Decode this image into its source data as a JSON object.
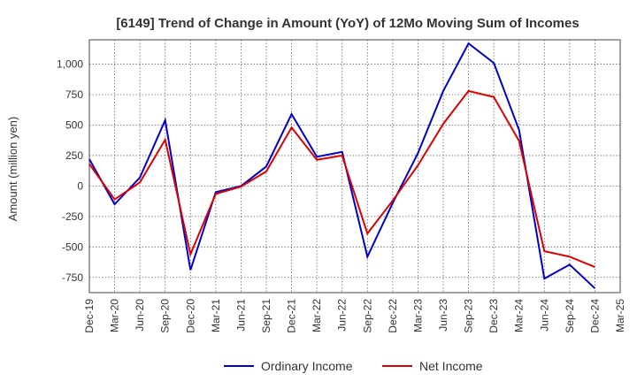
{
  "chart_data": {
    "type": "line",
    "title": "[6149]  Trend of Change in Amount (YoY) of 12Mo Moving Sum of Incomes",
    "xlabel": "",
    "ylabel": "Amount (million yen)",
    "ylim": [
      -875,
      1200
    ],
    "yticks": [
      -750,
      -500,
      -250,
      0,
      250,
      500,
      750,
      1000
    ],
    "ytick_labels": [
      "-750",
      "-500",
      "-250",
      "0",
      "250",
      "500",
      "750",
      "1,000"
    ],
    "categories": [
      "Dec-19",
      "Mar-20",
      "Jun-20",
      "Sep-20",
      "Dec-20",
      "Mar-21",
      "Jun-21",
      "Sep-21",
      "Dec-21",
      "Mar-22",
      "Jun-22",
      "Sep-22",
      "Dec-22",
      "Mar-23",
      "Jun-23",
      "Sep-23",
      "Dec-23",
      "Mar-24",
      "Jun-24",
      "Sep-24",
      "Dec-24",
      "Mar-25"
    ],
    "series": [
      {
        "name": "Ordinary Income",
        "color": "#0000cc",
        "values": [
          220,
          -150,
          70,
          540,
          -690,
          -50,
          0,
          160,
          590,
          240,
          280,
          -580,
          -140,
          270,
          780,
          1170,
          1010,
          460,
          -760,
          -645,
          -840,
          null
        ]
      },
      {
        "name": "Net Income",
        "color": "#dd0000",
        "values": [
          180,
          -110,
          30,
          380,
          -560,
          -65,
          -5,
          120,
          480,
          215,
          250,
          -390,
          -120,
          170,
          510,
          780,
          730,
          370,
          -535,
          -580,
          -665,
          null
        ]
      }
    ]
  }
}
